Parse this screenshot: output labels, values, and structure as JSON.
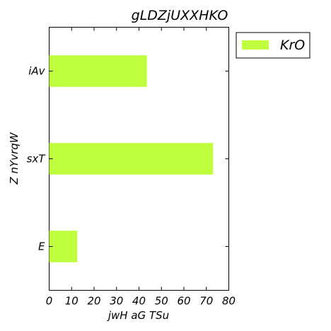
{
  "colors": {
    "bar": "#c0ff3e",
    "axis": "#000000",
    "background": "#ffffff"
  },
  "chart_data": {
    "type": "bar",
    "orientation": "horizontal",
    "title": "gLDZjUXXHKO",
    "xlabel": "jwH  aG TSu",
    "ylabel": "Z nYvrqW",
    "categories": [
      "E",
      "sxT",
      "iAv"
    ],
    "series": [
      {
        "name": "KrO",
        "values": [
          12.5,
          73,
          43.5
        ]
      }
    ],
    "xlim": [
      0,
      80
    ],
    "xticks": [
      0,
      10,
      20,
      30,
      40,
      50,
      60,
      70,
      80
    ],
    "grid": false,
    "legend_position": "outside-top-right"
  }
}
